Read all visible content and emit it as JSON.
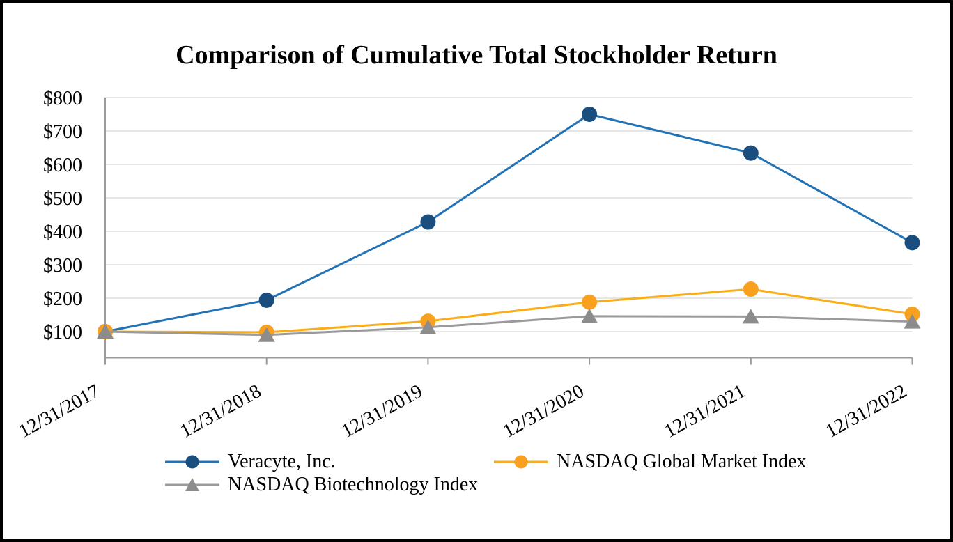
{
  "title": "Comparison of Cumulative Total Stockholder Return",
  "chart_data": {
    "type": "line",
    "title": "Comparison of Cumulative Total Stockholder Return",
    "xlabel": "",
    "ylabel": "",
    "categories": [
      "12/31/2017",
      "12/31/2018",
      "12/31/2019",
      "12/31/2020",
      "12/31/2021",
      "12/31/2022"
    ],
    "series": [
      {
        "name": "Veracyte, Inc.",
        "marker": "circle",
        "line_color": "#2272B5",
        "marker_color": "#1A4E7F",
        "values": [
          100,
          194,
          428,
          750,
          634,
          366
        ]
      },
      {
        "name": "NASDAQ Global Market Index",
        "marker": "circle",
        "line_color": "#FBAD18",
        "marker_color": "#F9A01E",
        "values": [
          100,
          98,
          131,
          188,
          227,
          152
        ]
      },
      {
        "name": "NASDAQ Biotechnology Index",
        "marker": "triangle",
        "line_color": "#9A9A9A",
        "marker_color": "#8C8C8C",
        "values": [
          100,
          90,
          113,
          146,
          145,
          130
        ]
      }
    ],
    "y_tick_labels": [
      "$100",
      "$200",
      "$300",
      "$400",
      "$500",
      "$600",
      "$700",
      "$800"
    ],
    "y_tick_values": [
      100,
      200,
      300,
      400,
      500,
      600,
      700,
      800
    ],
    "ylim": [
      0,
      800
    ],
    "grid": "horizontal",
    "legend_position": "bottom",
    "axis_color": "#9B9B9B",
    "gridline_color": "#DDDDDD",
    "text_color": "#000000"
  }
}
